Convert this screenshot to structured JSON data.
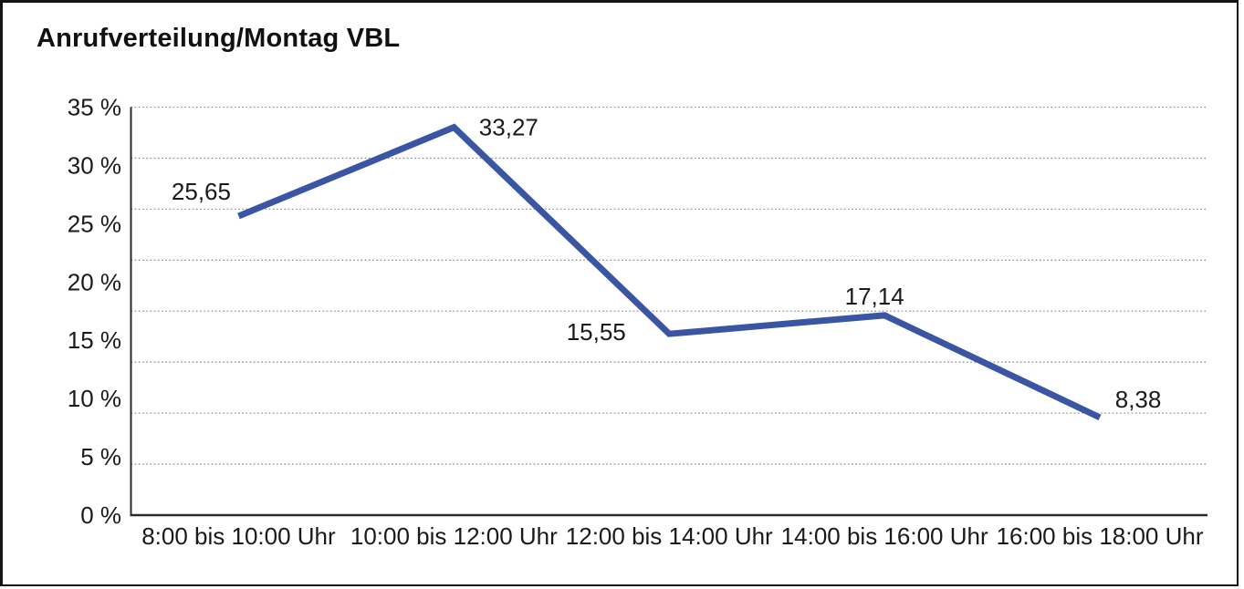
{
  "title": "Anrufverteilung/Montag VBL",
  "chart_data": {
    "type": "line",
    "title": "Anrufverteilung/Montag VBL",
    "categories": [
      "8:00 bis 10:00 Uhr",
      "10:00 bis 12:00 Uhr",
      "12:00 bis 14:00 Uhr",
      "14:00 bis 16:00 Uhr",
      "16:00 bis 18:00 Uhr"
    ],
    "values": [
      25.65,
      33.27,
      15.55,
      17.14,
      8.38
    ],
    "point_labels": [
      "25,65",
      "33,27",
      "15,55",
      "17,14",
      "8,38"
    ],
    "y_tick_values": [
      35,
      30,
      25,
      20,
      15,
      10,
      5,
      0
    ],
    "y_tick_labels": [
      "35 %",
      "30 %",
      "25 %",
      "20 %",
      "15 %",
      "10 %",
      "5 %",
      "0 %"
    ],
    "ylim": [
      0,
      35
    ],
    "grid": true,
    "grid_divisions": 8,
    "legend": "none",
    "line_color": "#3A55A3",
    "text_color": "#1a1a1a",
    "grid_color": "#8f8f8f",
    "axis_color": "#2b2b2b",
    "background_color": "#ffffff"
  }
}
